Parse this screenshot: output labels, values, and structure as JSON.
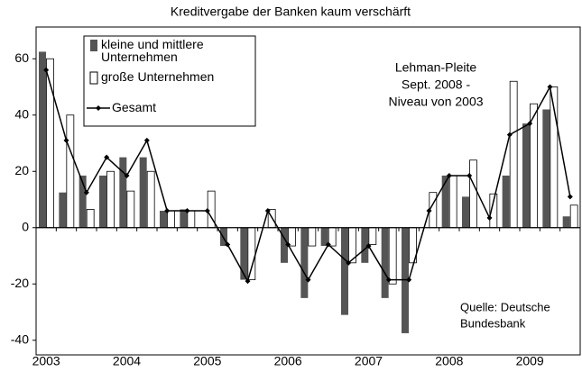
{
  "chart_data": {
    "type": "bar_line",
    "title": "Kreditvergabe der Banken kaum verschärft",
    "categories": [
      "2003",
      null,
      null,
      null,
      "2004",
      null,
      null,
      null,
      "2005",
      null,
      null,
      null,
      "2006",
      null,
      null,
      null,
      "2007",
      null,
      null,
      null,
      "2008",
      null,
      null,
      null,
      "2009",
      null,
      null
    ],
    "series": [
      {
        "name": "kleine und mittlere Unternehmen",
        "type": "bar",
        "color": "#555555",
        "values": [
          62.5,
          12.5,
          18.5,
          18.5,
          25,
          25,
          6,
          6.5,
          0,
          -6.5,
          -18.5,
          0,
          -12.5,
          -25,
          -6.5,
          -31,
          -12.5,
          -25,
          -37.5,
          0,
          18.5,
          11,
          0,
          18.5,
          37,
          42,
          4
        ]
      },
      {
        "name": "große Unternehmen",
        "type": "bar",
        "color": "#ffffff",
        "values": [
          60,
          40,
          6.5,
          20,
          13,
          20,
          6,
          6,
          13,
          0,
          -18.5,
          6.5,
          -6.5,
          -6.5,
          -6.5,
          -12.5,
          -6,
          -20,
          -12.5,
          12.5,
          18.5,
          24,
          12,
          52,
          44,
          50,
          8
        ]
      },
      {
        "name": "Gesamt",
        "type": "line",
        "color": "#000000",
        "values": [
          56,
          31,
          12.5,
          25,
          18.5,
          31,
          6,
          6,
          6,
          -6,
          -19,
          6,
          -6,
          -18.5,
          -6,
          -12.5,
          -6.5,
          -18.5,
          -18.5,
          6,
          18.5,
          18.5,
          3.5,
          33,
          37,
          50,
          11
        ]
      }
    ],
    "ylim": [
      -42,
      70
    ],
    "yticks": [
      -40,
      -20,
      0,
      20,
      40,
      60
    ],
    "annotation": [
      "Lehman-Pleite",
      "Sept. 2008 -",
      "Niveau von 2003"
    ],
    "source": [
      "Quelle: Deutsche",
      "Bundesbank"
    ]
  }
}
